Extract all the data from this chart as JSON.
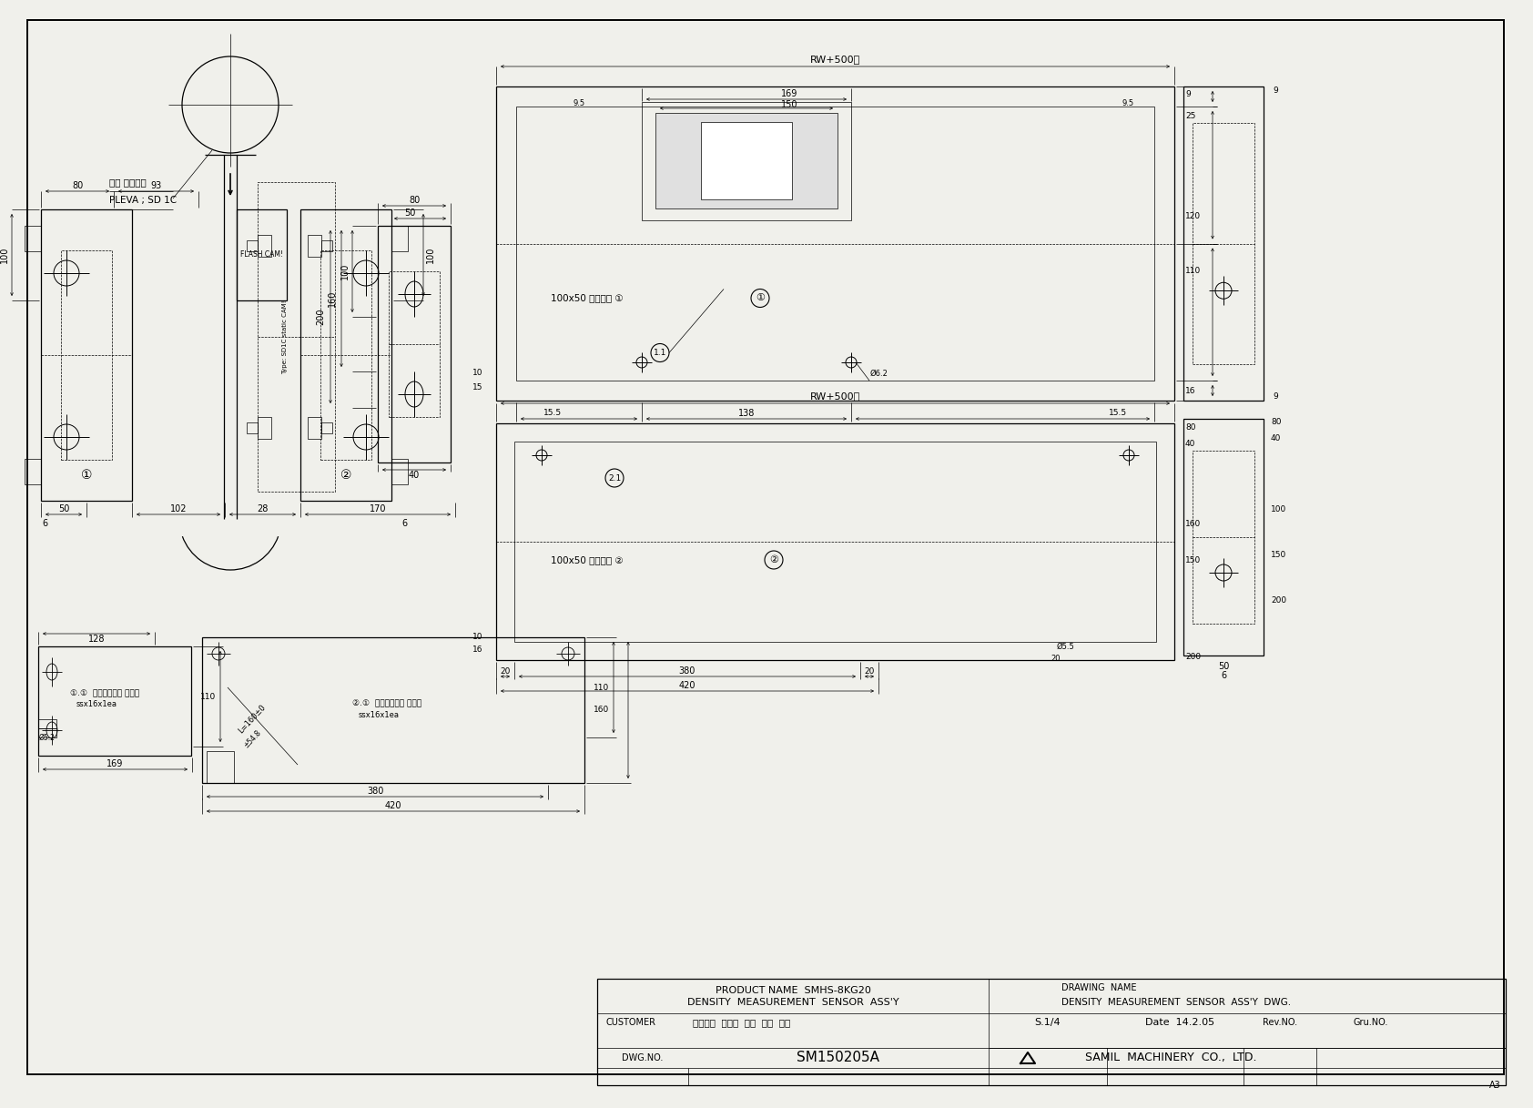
{
  "bg_color": "#f0f0eb",
  "line_color": "#000000",
  "title_block": {
    "product_name_label": "PRODUCT NAME  SMHS-8KG20",
    "product_name_value": "DENSITY  MEASUREMENT  SENSOR  ASS'Y",
    "drawing_name_label": "DRAWING  NAME",
    "drawing_name_value": "DENSITY  MEASUREMENT  SENSOR  ASS'Y  DWG.",
    "customer_label": "CUSTOMER",
    "customer_value": "중소기업  융복합  기술  개발  사업",
    "scale": "S.1/4",
    "date": "Date  14.2.05",
    "rev_no": "Rev.NO.",
    "gru_no": "Gru.NO.",
    "dwg_no_label": "DWG.NO.",
    "dwg_no_value": "SM150205A",
    "company": "SAMIL  MACHINERY  CO.,  LTD."
  }
}
